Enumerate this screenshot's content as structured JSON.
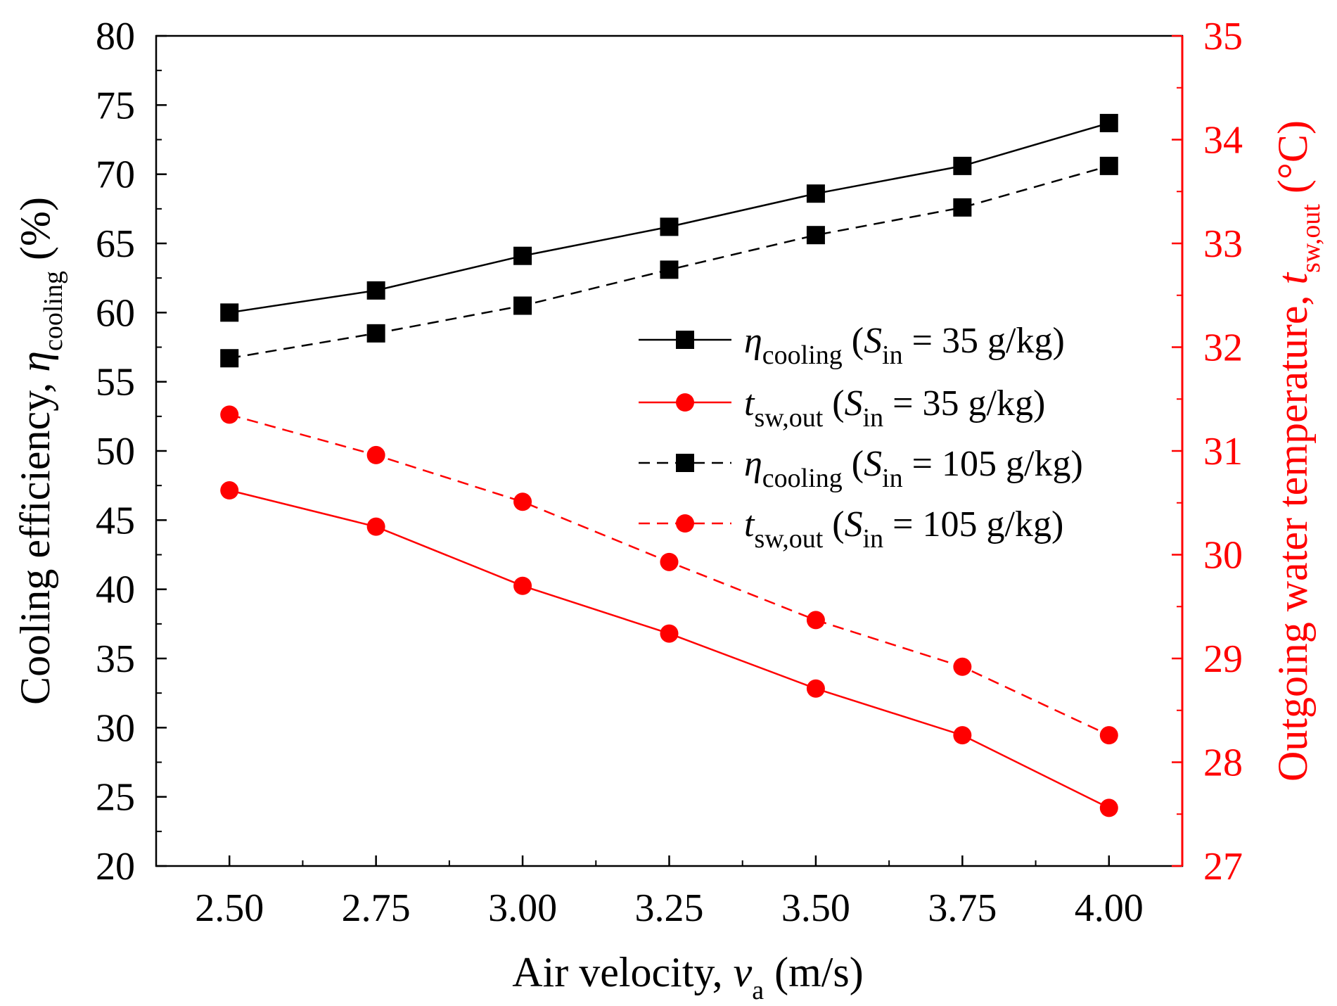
{
  "chart_data": {
    "type": "line",
    "x": [
      2.5,
      2.75,
      3.0,
      3.25,
      3.5,
      3.75,
      4.0
    ],
    "x_tick_labels": [
      "2.50",
      "2.75",
      "3.00",
      "3.25",
      "3.50",
      "3.75",
      "4.00"
    ],
    "xlim": [
      2.375,
      4.125
    ],
    "y_left": {
      "lim": [
        20,
        80
      ],
      "ticks": [
        20,
        25,
        30,
        35,
        40,
        45,
        50,
        55,
        60,
        65,
        70,
        75,
        80
      ],
      "tick_labels": [
        "20",
        "25",
        "30",
        "35",
        "40",
        "45",
        "50",
        "55",
        "60",
        "65",
        "70",
        "75",
        "80"
      ],
      "label_main": "Cooling efficiency, ",
      "label_symbol": "η",
      "label_sub": "cooling",
      "label_unit": " (%)",
      "color": "#000000"
    },
    "y_right": {
      "lim": [
        27,
        35
      ],
      "ticks": [
        27,
        28,
        29,
        30,
        31,
        32,
        33,
        34,
        35
      ],
      "tick_labels": [
        "27",
        "28",
        "29",
        "30",
        "31",
        "32",
        "33",
        "34",
        "35"
      ],
      "label_main": "Outgoing water temperature, ",
      "label_symbol": "t",
      "label_sub": "sw,out",
      "label_unit": " (°C)",
      "color": "#ff0000"
    },
    "xlabel": {
      "main": "Air velocity, ",
      "symbol": "v",
      "sub": "a",
      "unit": " (m/s)"
    },
    "series": [
      {
        "name": "η cooling (S in = 35 g/kg)",
        "legend": {
          "symbol": "η",
          "sub": "cooling",
          "open": " (",
          "s": "S",
          "s_sub": "in",
          "rest": " = 35 g/kg)"
        },
        "axis": "left",
        "color": "#000000",
        "dash": "solid",
        "marker": "square",
        "values": [
          60.0,
          61.6,
          64.1,
          66.2,
          68.6,
          70.6,
          73.7
        ]
      },
      {
        "name": "t sw,out (S in = 35 g/kg)",
        "legend": {
          "symbol": "t",
          "sub": "sw,out",
          "open": " (",
          "s": "S",
          "s_sub": "in",
          "rest": " = 35 g/kg)"
        },
        "axis": "right",
        "color": "#ff0000",
        "dash": "solid",
        "marker": "circle",
        "values": [
          30.62,
          30.27,
          29.7,
          29.24,
          28.71,
          28.26,
          27.56
        ]
      },
      {
        "name": "η cooling (S in = 105 g/kg)",
        "legend": {
          "symbol": "η",
          "sub": "cooling",
          "open": " (",
          "s": "S",
          "s_sub": "in",
          "rest": " = 105 g/kg)"
        },
        "axis": "left",
        "color": "#000000",
        "dash": "dashed",
        "marker": "square",
        "values": [
          56.7,
          58.5,
          60.5,
          63.1,
          65.6,
          67.6,
          70.6
        ]
      },
      {
        "name": "t sw,out (S in = 105 g/kg)",
        "legend": {
          "symbol": "t",
          "sub": "sw,out",
          "open": " (",
          "s": "S",
          "s_sub": "in",
          "rest": " = 105 g/kg)"
        },
        "axis": "right",
        "color": "#ff0000",
        "dash": "dashed",
        "marker": "circle",
        "values": [
          31.35,
          30.96,
          30.51,
          29.93,
          29.37,
          28.92,
          28.26
        ]
      }
    ],
    "legend_position": "center-right",
    "grid": false
  }
}
